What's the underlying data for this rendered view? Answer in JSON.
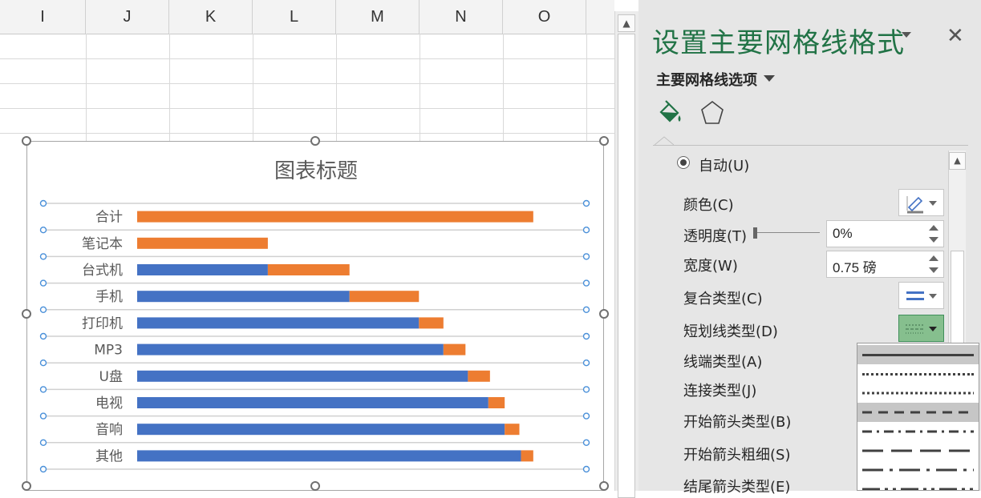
{
  "spreadsheet": {
    "columns": [
      "I",
      "J",
      "K",
      "L",
      "M",
      "N",
      "O"
    ]
  },
  "chart_data": {
    "type": "bar",
    "title": "图表标题",
    "categories": [
      "合计",
      "笔记本",
      "台式机",
      "手机",
      "打印机",
      "MP3",
      "U盘",
      "电视",
      "音响",
      "其他"
    ],
    "series": [
      {
        "color": "#4472c4",
        "values": [
          0,
          0,
          1600,
          2600,
          3450,
          3750,
          4050,
          4300,
          4500,
          4700
        ]
      },
      {
        "color": "#ed7d31",
        "values": [
          4850,
          1600,
          1000,
          850,
          300,
          270,
          270,
          200,
          180,
          150
        ]
      }
    ],
    "stacked": true,
    "xlim": [
      0,
      5500
    ],
    "gridlines": true,
    "legend": "none"
  },
  "panel": {
    "title": "设置主要网格线格式",
    "close_glyph": "✕",
    "subtitle": "主要网格线选项",
    "icons": {
      "fill": "paint-bucket-icon",
      "shape": "pentagon-icon"
    },
    "options": {
      "auto_radio": "自动(U)",
      "color": "颜色(C)",
      "transparency": "透明度(T)",
      "transparency_value": "0%",
      "width": "宽度(W)",
      "width_value": "0.75 磅",
      "compound": "复合类型(C)",
      "dash": "短划线类型(D)",
      "cap": "线端类型(A)",
      "join": "连接类型(J)",
      "begin_arrow_type": "开始箭头类型(B)",
      "begin_arrow_size": "开始箭头粗细(S)",
      "end_arrow_type": "结尾箭头类型(E)"
    },
    "dash_options": [
      "solid",
      "round-dot",
      "square-dot",
      "dash",
      "dash-dot",
      "long-dash",
      "long-dash-dot",
      "long-dash-dot-dot"
    ],
    "dash_selected": "solid",
    "dash_hover": "dash"
  },
  "colors": {
    "accent": "#217346",
    "series_blue": "#4472c4",
    "series_orange": "#ed7d31"
  }
}
